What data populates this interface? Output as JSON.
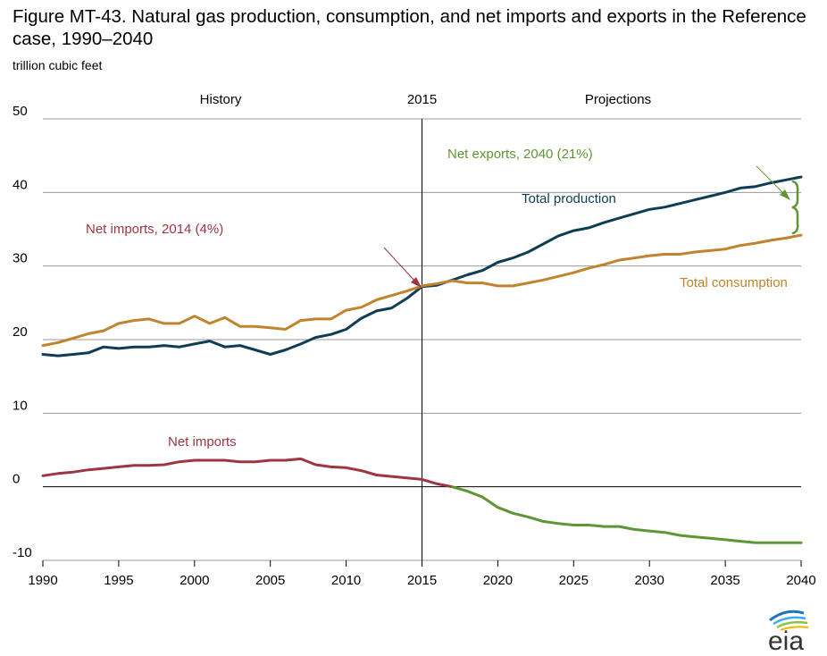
{
  "title": "Figure MT-43. Natural gas production, consumption, and net imports and exports in the Reference case, 1990–2040",
  "ylabel": "trillion cubic feet",
  "logo": "eia",
  "chart_data": {
    "type": "line",
    "xlim": [
      1990,
      2040
    ],
    "ylim": [
      -10,
      50
    ],
    "xticks": [
      1990,
      1995,
      2000,
      2005,
      2010,
      2015,
      2020,
      2025,
      2030,
      2035,
      2040
    ],
    "yticks": [
      50,
      40,
      30,
      20,
      10,
      0,
      -10
    ],
    "grid": "horizontal",
    "divider": {
      "x": 2015,
      "label": "2015"
    },
    "period_labels": {
      "history": "History",
      "projections": "Projections"
    },
    "colors": {
      "production": "#0f3d55",
      "consumption": "#c2832f",
      "imports": "#9e3540",
      "exports": "#5d9632"
    },
    "x": [
      1990,
      1991,
      1992,
      1993,
      1994,
      1995,
      1996,
      1997,
      1998,
      1999,
      2000,
      2001,
      2002,
      2003,
      2004,
      2005,
      2006,
      2007,
      2008,
      2009,
      2010,
      2011,
      2012,
      2013,
      2014,
      2015,
      2016,
      2017,
      2018,
      2019,
      2020,
      2021,
      2022,
      2023,
      2024,
      2025,
      2026,
      2027,
      2028,
      2029,
      2030,
      2031,
      2032,
      2033,
      2034,
      2035,
      2036,
      2037,
      2038,
      2039,
      2040
    ],
    "series": [
      {
        "key": "production",
        "name": "Total production",
        "values": [
          18.0,
          17.8,
          18.0,
          18.2,
          19.0,
          18.8,
          19.0,
          19.0,
          19.2,
          19.0,
          19.4,
          19.8,
          19.0,
          19.2,
          18.6,
          18.0,
          18.6,
          19.4,
          20.3,
          20.7,
          21.4,
          22.9,
          23.9,
          24.3,
          25.6,
          27.2,
          27.4,
          28.1,
          28.8,
          29.4,
          30.5,
          31.1,
          31.9,
          33.0,
          34.1,
          34.8,
          35.2,
          35.9,
          36.5,
          37.1,
          37.7,
          38.0,
          38.5,
          39.0,
          39.5,
          40.0,
          40.6,
          40.8,
          41.3,
          41.7,
          42.1
        ]
      },
      {
        "key": "consumption",
        "name": "Total consumption",
        "values": [
          19.2,
          19.6,
          20.2,
          20.8,
          21.2,
          22.2,
          22.6,
          22.8,
          22.2,
          22.2,
          23.2,
          22.2,
          23.0,
          21.8,
          21.8,
          21.6,
          21.4,
          22.6,
          22.8,
          22.8,
          24.0,
          24.4,
          25.4,
          26.0,
          26.6,
          27.3,
          27.6,
          28.0,
          27.7,
          27.7,
          27.3,
          27.3,
          27.7,
          28.1,
          28.6,
          29.1,
          29.7,
          30.2,
          30.8,
          31.1,
          31.4,
          31.6,
          31.6,
          31.9,
          32.1,
          32.3,
          32.8,
          33.1,
          33.5,
          33.8,
          34.2
        ]
      },
      {
        "key": "imports",
        "name": "Net imports",
        "values": [
          1.5,
          1.8,
          2.0,
          2.3,
          2.5,
          2.7,
          2.9,
          2.9,
          3.0,
          3.4,
          3.6,
          3.6,
          3.6,
          3.4,
          3.4,
          3.6,
          3.6,
          3.8,
          3.0,
          2.7,
          2.6,
          2.2,
          1.6,
          1.4,
          1.2,
          1.0,
          0.4,
          0.0,
          null,
          null,
          null,
          null,
          null,
          null,
          null,
          null,
          null,
          null,
          null,
          null,
          null,
          null,
          null,
          null,
          null,
          null,
          null,
          null,
          null,
          null,
          null
        ]
      },
      {
        "key": "exports",
        "name": "Net exports",
        "values": [
          null,
          null,
          null,
          null,
          null,
          null,
          null,
          null,
          null,
          null,
          null,
          null,
          null,
          null,
          null,
          null,
          null,
          null,
          null,
          null,
          null,
          null,
          null,
          null,
          null,
          null,
          null,
          0.0,
          -0.6,
          -1.4,
          -2.8,
          -3.6,
          -4.1,
          -4.7,
          -5.0,
          -5.2,
          -5.2,
          -5.4,
          -5.4,
          -5.8,
          -6.0,
          -6.2,
          -6.6,
          -6.8,
          -7.0,
          -7.2,
          -7.4,
          -7.6,
          -7.6,
          -7.6,
          -7.6
        ]
      }
    ],
    "annotations": {
      "net_imports_2014": "Net imports, 2014 (4%)",
      "net_exports_2040": "Net exports, 2040 (21%)",
      "total_production": "Total production",
      "total_consumption": "Total consumption",
      "net_imports": "Net imports"
    }
  }
}
